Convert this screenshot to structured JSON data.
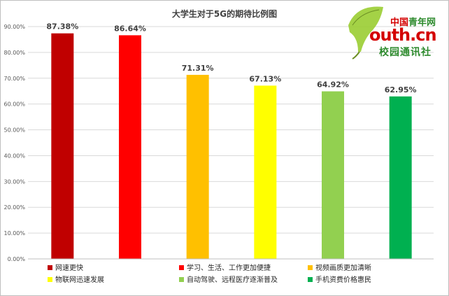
{
  "chart_data": {
    "type": "bar",
    "title": "大学生对于5G的期待比例图",
    "categories": [
      "网速更快",
      "学习、生活、工作更加便捷",
      "视频画质更加清晰",
      "物联网迅速发展",
      "自动驾驶、远程医疗逐渐普及",
      "手机资费价格惠民"
    ],
    "values": [
      87.38,
      86.64,
      71.31,
      67.13,
      64.92,
      62.95
    ],
    "value_labels": [
      "87.38%",
      "86.64%",
      "71.31%",
      "67.13%",
      "64.92%",
      "62.95%"
    ],
    "colors": [
      "#c00000",
      "#ff0000",
      "#ffc000",
      "#ffff00",
      "#92d050",
      "#00b050"
    ],
    "ylim": [
      0,
      90
    ],
    "yticks": [
      0,
      10,
      20,
      30,
      40,
      50,
      60,
      70,
      80,
      90
    ],
    "ytick_labels": [
      "0.00%",
      "10.00%",
      "20.00%",
      "30.00%",
      "40.00%",
      "50.00%",
      "60.00%",
      "70.00%",
      "80.00%",
      "90.00%"
    ],
    "grid": true,
    "legend_position": "bottom",
    "xlabel": "",
    "ylabel": ""
  },
  "watermark": {
    "line1_red": "中国",
    "line1_green": "青年网",
    "line2": "outh.cn",
    "line3": "校园通讯社"
  }
}
